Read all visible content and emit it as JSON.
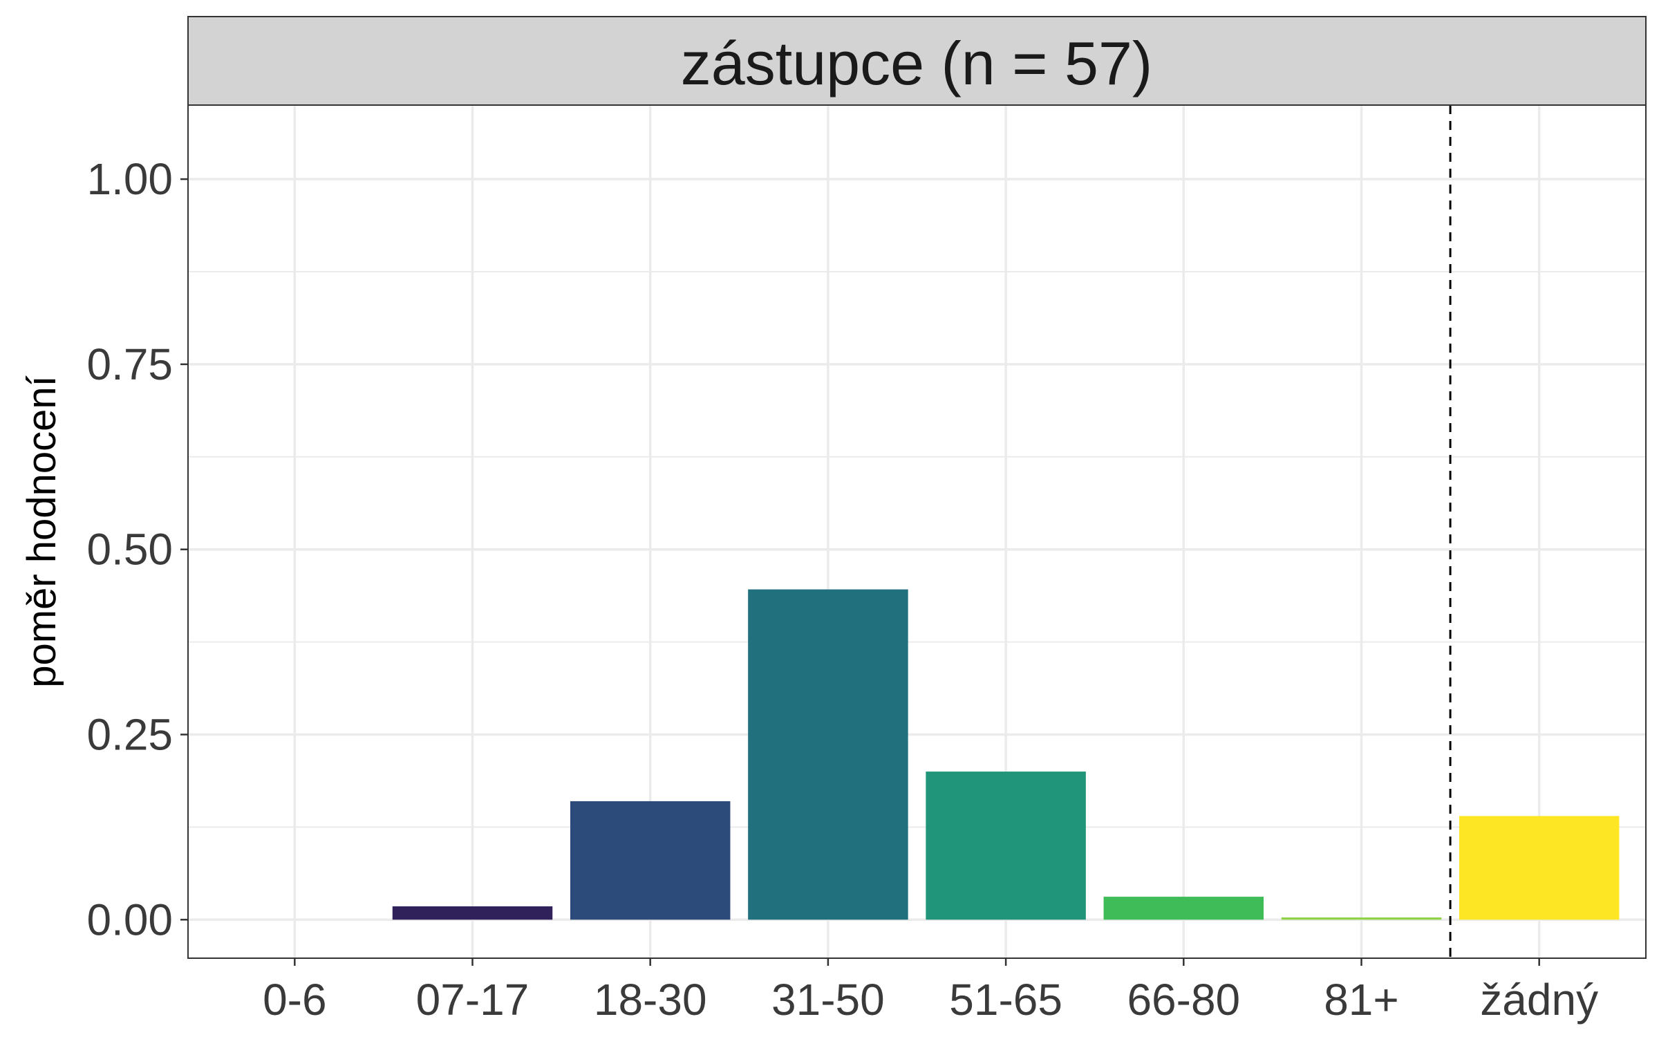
{
  "chart_data": {
    "type": "bar",
    "facet_title": "zástupce (n = 57)",
    "ylabel": "poměr hodnocení",
    "xlabel": "",
    "categories": [
      "0-6",
      "07-17",
      "18-30",
      "31-50",
      "51-65",
      "66-80",
      "81+",
      "žádný"
    ],
    "values": [
      0.0,
      0.018,
      0.16,
      0.446,
      0.2,
      0.031,
      0.003,
      0.14
    ],
    "colors": [
      "#440154",
      "#30215B",
      "#2C4A7A",
      "#21707D",
      "#21957A",
      "#3FBB57",
      "#8DD444",
      "#FDE725"
    ],
    "ylim": [
      -0.052,
      1.1
    ],
    "yticks": [
      0.0,
      0.25,
      0.5,
      0.75,
      1.0
    ],
    "ytick_labels": [
      "0.00",
      "0.25",
      "0.50",
      "0.75",
      "1.00"
    ],
    "reference_line": {
      "between_categories": [
        "81+",
        "žádný"
      ],
      "style": "dashed"
    },
    "grid": true,
    "legend": "none"
  }
}
